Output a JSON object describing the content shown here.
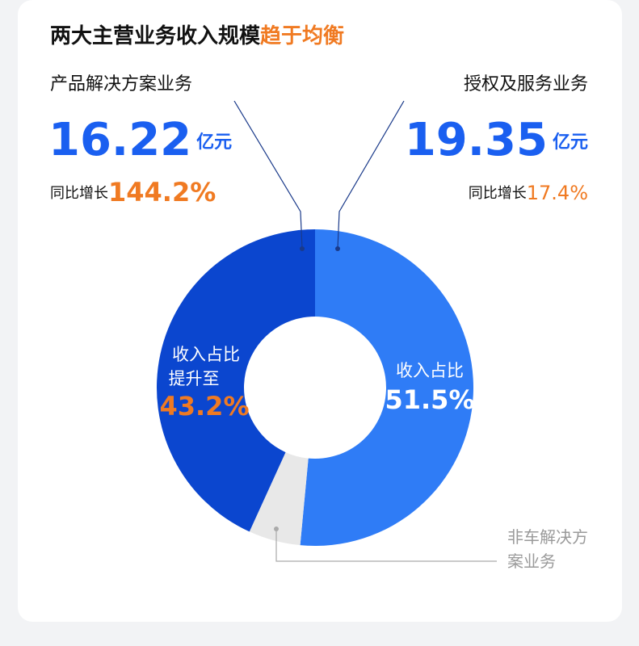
{
  "chart_data": {
    "type": "pie",
    "title": "两大主营业务收入规模",
    "title_highlight": "趋于均衡",
    "categories": [
      "产品解决方案业务",
      "授权及服务业务",
      "非车解决方案业务"
    ],
    "values": [
      43.2,
      51.5,
      5.3
    ],
    "value_labels": [
      "43.2%",
      "51.5%",
      null
    ],
    "colors": [
      "#0b46cf",
      "#2f7cf6",
      "#e8e8e8"
    ],
    "share_label": "收入占比",
    "share_label_rise": "提升至",
    "revenue": {
      "values": [
        16.22,
        19.35
      ],
      "unit": "亿元"
    },
    "growth": {
      "label": "同比增长",
      "values": [
        144.2,
        17.4
      ],
      "value_labels": [
        "144.2%",
        "17.4%"
      ]
    }
  }
}
